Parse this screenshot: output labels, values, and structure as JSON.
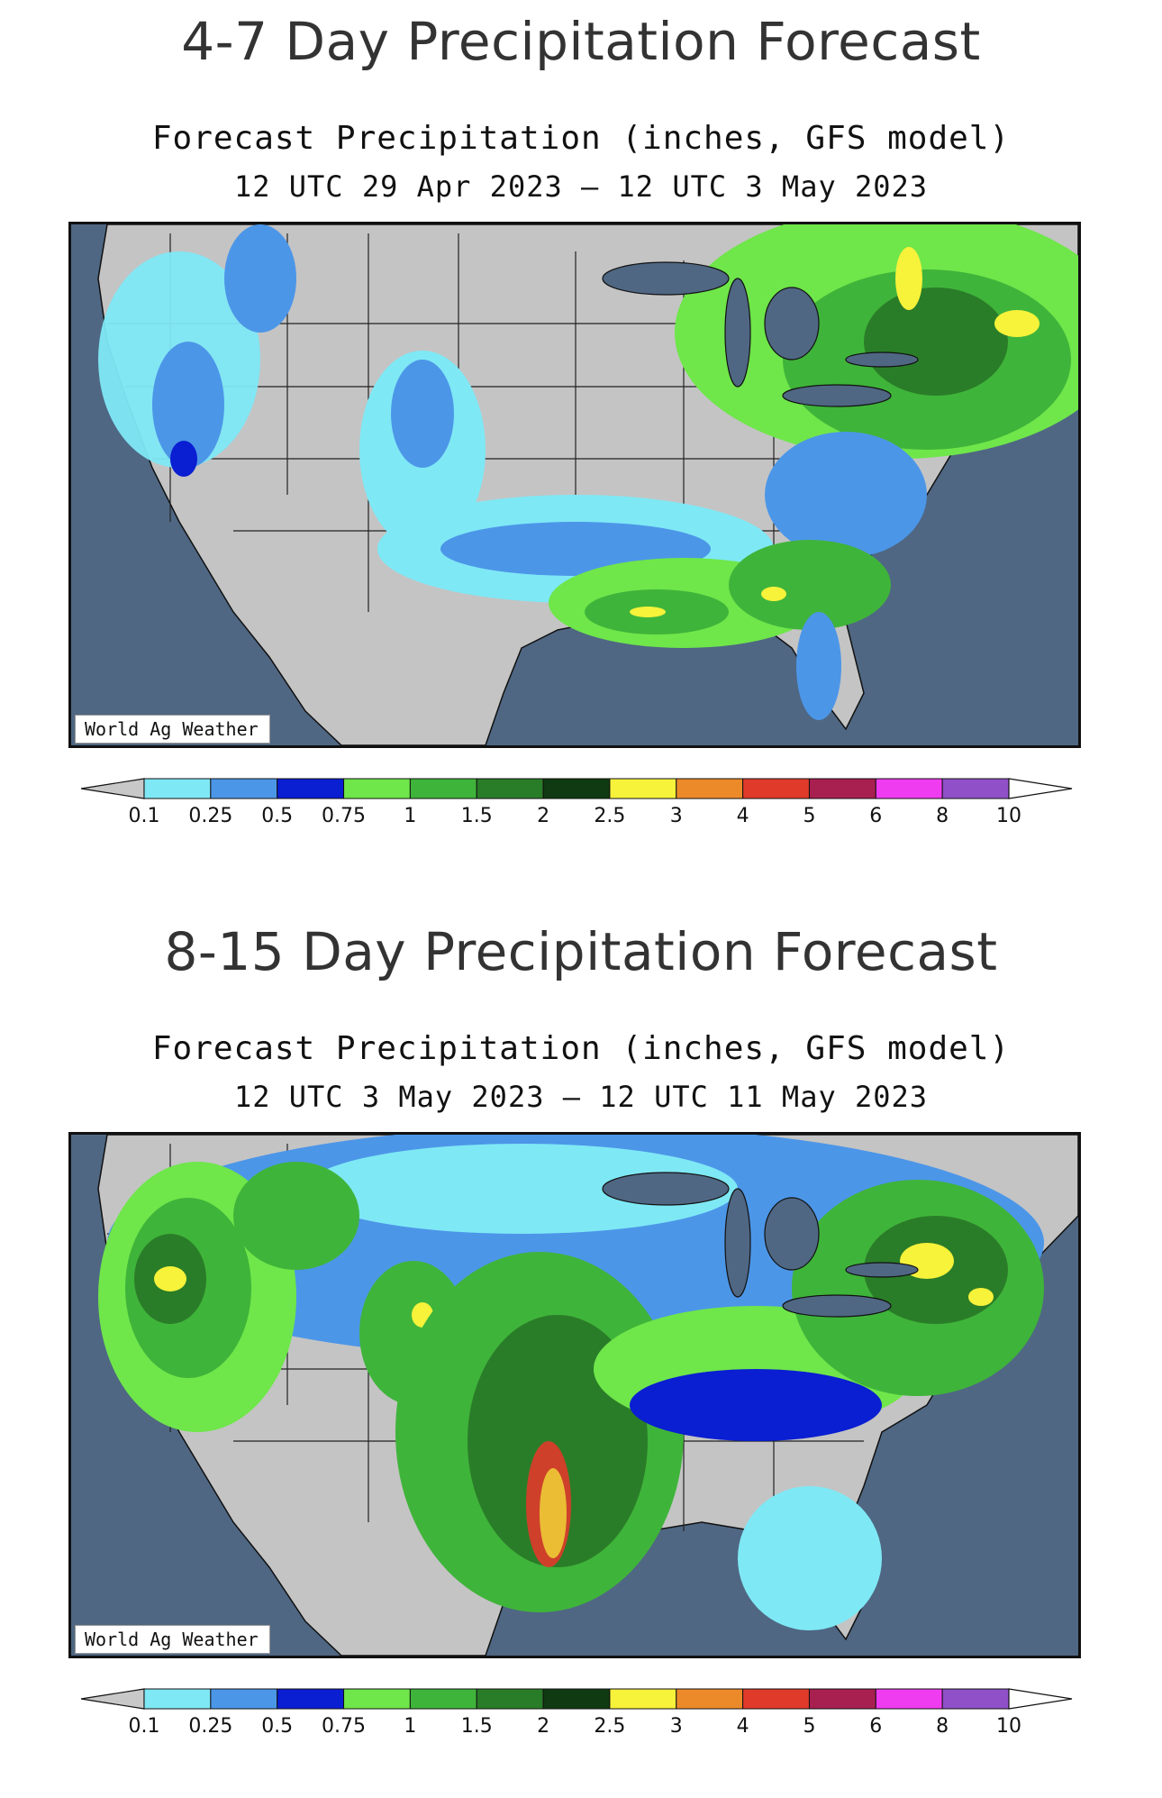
{
  "panels": [
    {
      "section_title": "4-7 Day Precipitation Forecast",
      "map_title": "Forecast Precipitation (inches, GFS model)",
      "map_subtitle": "12 UTC 29 Apr 2023 – 12 UTC 3 May 2023",
      "credit": "World Ag Weather"
    },
    {
      "section_title": "8-15 Day Precipitation Forecast",
      "map_title": "Forecast Precipitation (inches, GFS model)",
      "map_subtitle": "12 UTC 3 May 2023 – 12 UTC 11 May 2023",
      "credit": "World Ag Weather"
    }
  ],
  "legend": {
    "tick_labels": [
      "0.1",
      "0.25",
      "0.5",
      "0.75",
      "1",
      "1.5",
      "2",
      "2.5",
      "3",
      "4",
      "5",
      "6",
      "8",
      "10"
    ],
    "colors": [
      "#c8c8c8",
      "#7fe8f5",
      "#4c96e8",
      "#0a1ed2",
      "#6fe64a",
      "#3fb43a",
      "#2a7d28",
      "#0f3a12",
      "#f7f23a",
      "#ec8a2a",
      "#e03a2a",
      "#a82050",
      "#f03cf0",
      "#9050c8",
      "#ffffff"
    ]
  },
  "colors": {
    "ocean": "#4f6783",
    "land": "#c4c4c4",
    "borders": "#111111"
  }
}
